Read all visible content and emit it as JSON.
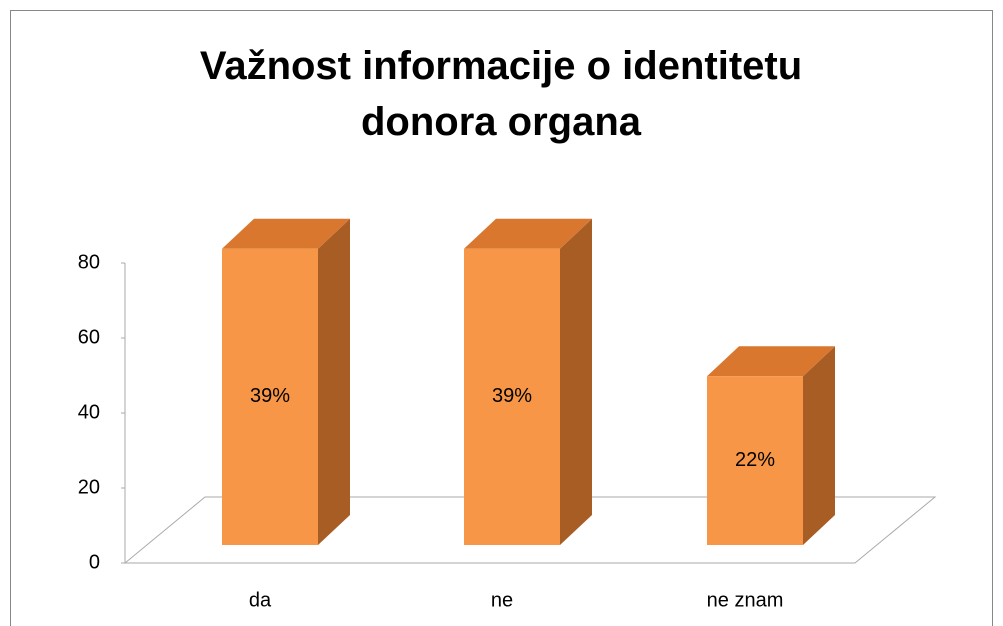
{
  "chart_data": {
    "type": "bar3d",
    "title": "Važnost informacije o identitetu donora organa",
    "categories": [
      "da",
      "ne",
      "ne znam"
    ],
    "values": [
      79,
      79,
      45
    ],
    "bar_labels": [
      "39%",
      "39%",
      "22%"
    ],
    "color": "#f79646",
    "ylim": [
      0,
      80
    ],
    "yticks": [
      0,
      20,
      40,
      60,
      80
    ]
  }
}
